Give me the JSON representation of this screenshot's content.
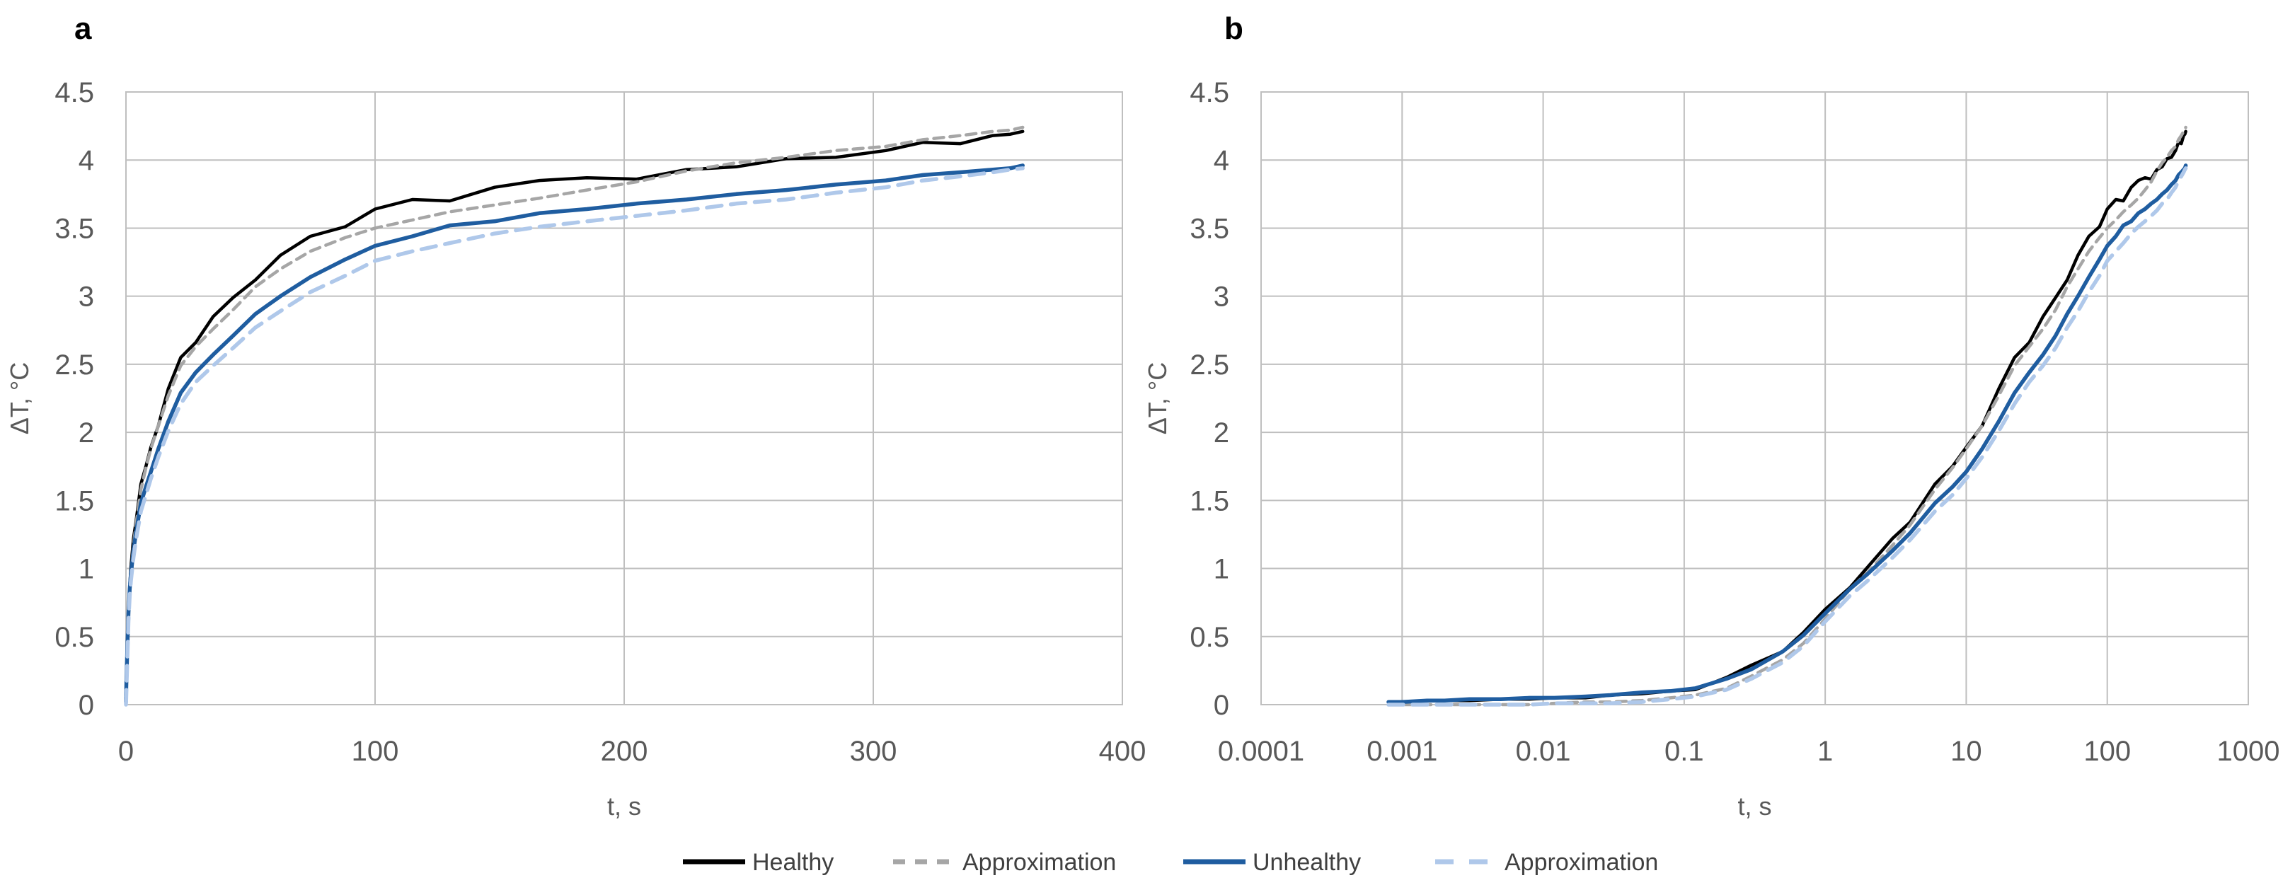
{
  "figure": {
    "description": "Two-panel line chart of temperature rise versus time with measured and approximated curves",
    "background": "#ffffff",
    "text_color": "#595959",
    "legend_text_color": "#404040",
    "grid_color": "#BFBFBF",
    "panel_letter_color": "#000000"
  },
  "chart_data": [
    {
      "id": "a",
      "type": "line",
      "panel_label": "a",
      "x_axis": {
        "scale": "linear",
        "label": "t, s",
        "min": 0,
        "max": 400,
        "ticks": [
          0,
          100,
          200,
          300,
          400
        ],
        "tick_labels": [
          "0",
          "100",
          "200",
          "300",
          "400"
        ]
      },
      "y_axis": {
        "scale": "linear",
        "label": "ΔT, °C",
        "min": 0,
        "max": 4.5,
        "ticks": [
          0,
          0.5,
          1,
          1.5,
          2,
          2.5,
          3,
          3.5,
          4,
          4.5
        ],
        "tick_labels": [
          "0",
          "0.5",
          "1",
          "1.5",
          "2",
          "2.5",
          "3",
          "3.5",
          "4",
          "4.5"
        ]
      },
      "grid": true,
      "series_ids": [
        "healthy",
        "healthy_approx",
        "unhealthy",
        "unhealthy_approx"
      ]
    },
    {
      "id": "b",
      "type": "line",
      "panel_label": "b",
      "x_axis": {
        "scale": "log",
        "label": "t, s",
        "min": 0.0001,
        "max": 1000,
        "ticks": [
          0.0001,
          0.001,
          0.01,
          0.1,
          1,
          10,
          100,
          1000
        ],
        "tick_labels": [
          "0.0001",
          "0.001",
          "0.01",
          "0.1",
          "1",
          "10",
          "100",
          "1000"
        ]
      },
      "y_axis": {
        "scale": "linear",
        "label": "ΔT, °C",
        "min": 0,
        "max": 4.5,
        "ticks": [
          0,
          0.5,
          1,
          1.5,
          2,
          2.5,
          3,
          3.5,
          4,
          4.5
        ],
        "tick_labels": [
          "0",
          "0.5",
          "1",
          "1.5",
          "2",
          "2.5",
          "3",
          "3.5",
          "4",
          "4.5"
        ]
      },
      "grid": true,
      "series_ids": [
        "healthy",
        "healthy_approx",
        "unhealthy",
        "unhealthy_approx"
      ]
    }
  ],
  "t_samples": [
    0.0008,
    0.001,
    0.0015,
    0.002,
    0.003,
    0.005,
    0.008,
    0.012,
    0.02,
    0.03,
    0.05,
    0.08,
    0.12,
    0.2,
    0.3,
    0.5,
    0.7,
    1,
    1.5,
    2,
    3,
    4,
    6,
    8,
    10,
    13,
    17,
    22,
    28,
    35,
    43,
    52,
    62,
    74,
    88,
    100,
    115,
    130,
    148,
    166,
    185,
    205,
    225,
    245,
    265,
    285,
    305,
    320,
    335,
    348,
    355,
    360
  ],
  "series": [
    {
      "id": "healthy",
      "name": "Healthy",
      "color": "#000000",
      "style": "solid",
      "line_width": 4.5,
      "values": [
        0.02,
        0.02,
        0.03,
        0.03,
        0.03,
        0.04,
        0.04,
        0.05,
        0.05,
        0.07,
        0.08,
        0.1,
        0.11,
        0.2,
        0.29,
        0.39,
        0.53,
        0.7,
        0.86,
        1.01,
        1.22,
        1.34,
        1.62,
        1.75,
        1.89,
        2.05,
        2.32,
        2.55,
        2.66,
        2.85,
        2.99,
        3.12,
        3.3,
        3.44,
        3.51,
        3.64,
        3.71,
        3.7,
        3.8,
        3.85,
        3.87,
        3.86,
        3.93,
        3.95,
        4.01,
        4.02,
        4.07,
        4.13,
        4.12,
        4.18,
        4.19,
        4.21
      ]
    },
    {
      "id": "healthy_approx",
      "name": "Approximation",
      "color": "#A6A6A6",
      "style": "dashed",
      "line_width": 4.5,
      "dash": [
        14,
        9
      ],
      "legend_dash": [
        17,
        14
      ],
      "values": [
        0,
        0,
        0,
        0,
        0,
        0,
        0,
        0.01,
        0.02,
        0.02,
        0.03,
        0.05,
        0.07,
        0.12,
        0.21,
        0.33,
        0.45,
        0.63,
        0.85,
        0.97,
        1.17,
        1.32,
        1.58,
        1.74,
        1.88,
        2.05,
        2.27,
        2.49,
        2.63,
        2.76,
        2.9,
        3.07,
        3.2,
        3.33,
        3.43,
        3.5,
        3.56,
        3.62,
        3.67,
        3.72,
        3.78,
        3.84,
        3.92,
        3.98,
        4.02,
        4.07,
        4.1,
        4.15,
        4.18,
        4.21,
        4.22,
        4.24
      ]
    },
    {
      "id": "unhealthy",
      "name": "Unhealthy",
      "color": "#1F5DA0",
      "style": "solid",
      "line_width": 5.5,
      "values": [
        0.02,
        0.02,
        0.03,
        0.03,
        0.04,
        0.04,
        0.05,
        0.05,
        0.06,
        0.07,
        0.09,
        0.1,
        0.12,
        0.19,
        0.26,
        0.39,
        0.51,
        0.67,
        0.85,
        0.96,
        1.13,
        1.26,
        1.48,
        1.6,
        1.71,
        1.88,
        2.08,
        2.29,
        2.44,
        2.57,
        2.71,
        2.87,
        3.0,
        3.14,
        3.27,
        3.37,
        3.44,
        3.52,
        3.55,
        3.61,
        3.64,
        3.68,
        3.71,
        3.75,
        3.78,
        3.82,
        3.85,
        3.89,
        3.91,
        3.93,
        3.94,
        3.96
      ]
    },
    {
      "id": "unhealthy_approx",
      "name": "Approximation",
      "color": "#AFC8EA",
      "style": "dashed",
      "line_width": 5.5,
      "dash": [
        21,
        13
      ],
      "legend_dash": [
        26,
        22
      ],
      "values": [
        0,
        0,
        0,
        0,
        0,
        0,
        0,
        0.01,
        0.01,
        0.01,
        0.02,
        0.04,
        0.06,
        0.11,
        0.19,
        0.31,
        0.43,
        0.61,
        0.8,
        0.91,
        1.08,
        1.21,
        1.42,
        1.54,
        1.66,
        1.82,
        2.01,
        2.21,
        2.37,
        2.49,
        2.62,
        2.77,
        2.89,
        3.03,
        3.15,
        3.26,
        3.33,
        3.39,
        3.46,
        3.51,
        3.55,
        3.59,
        3.63,
        3.68,
        3.71,
        3.76,
        3.8,
        3.85,
        3.88,
        3.91,
        3.93,
        3.94
      ]
    }
  ],
  "legend": {
    "items": [
      {
        "series_id": "healthy",
        "label": "Healthy"
      },
      {
        "series_id": "healthy_approx",
        "label": "Approximation"
      },
      {
        "series_id": "unhealthy",
        "label": "Unhealthy"
      },
      {
        "series_id": "unhealthy_approx",
        "label": "Approximation"
      }
    ]
  }
}
